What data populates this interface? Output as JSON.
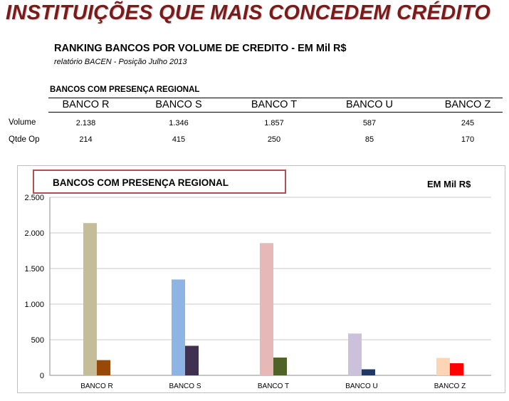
{
  "header": {
    "title": "INSTITUIÇÕES QUE MAIS CONCEDEM CRÉDITO",
    "subtitle": "RANKING BANCOS POR VOLUME DE CREDITO - EM Mil R$",
    "source": "relatório BACEN - Posição Julho 2013"
  },
  "table": {
    "caption": "BANCOS COM PRESENÇA REGIONAL",
    "columns": [
      "BANCO R",
      "BANCO S",
      "BANCO T",
      "BANCO U",
      "BANCO Z"
    ],
    "rows": [
      {
        "label": "Volume",
        "values": [
          "2.138",
          "1.346",
          "1.857",
          "587",
          "245"
        ]
      },
      {
        "label": "Qtde Op",
        "values": [
          "214",
          "415",
          "250",
          "85",
          "170"
        ]
      }
    ]
  },
  "chart_data": {
    "type": "bar",
    "title": "BANCOS COM PRESENÇA REGIONAL",
    "unit_label": "EM Mil R$",
    "categories": [
      "BANCO R",
      "BANCO S",
      "BANCO T",
      "BANCO U",
      "BANCO Z"
    ],
    "ylim": [
      0,
      2500
    ],
    "yticks": [
      0,
      500,
      1000,
      1500,
      2000,
      2500
    ],
    "ytick_labels": [
      "0",
      "500",
      "1.000",
      "1.500",
      "2.000",
      "2.500"
    ],
    "grid": true,
    "legend": "none",
    "series": [
      {
        "values": [
          2138,
          1346,
          1857,
          587,
          245
        ],
        "colors": [
          "#c4bd97",
          "#8eb4e3",
          "#e6b9b8",
          "#ccc1da",
          "#fcd5b5"
        ]
      },
      {
        "values": [
          214,
          415,
          250,
          85,
          170
        ],
        "colors": [
          "#984807",
          "#403152",
          "#4f6228",
          "#1f3864",
          "#ff0000"
        ]
      }
    ]
  }
}
